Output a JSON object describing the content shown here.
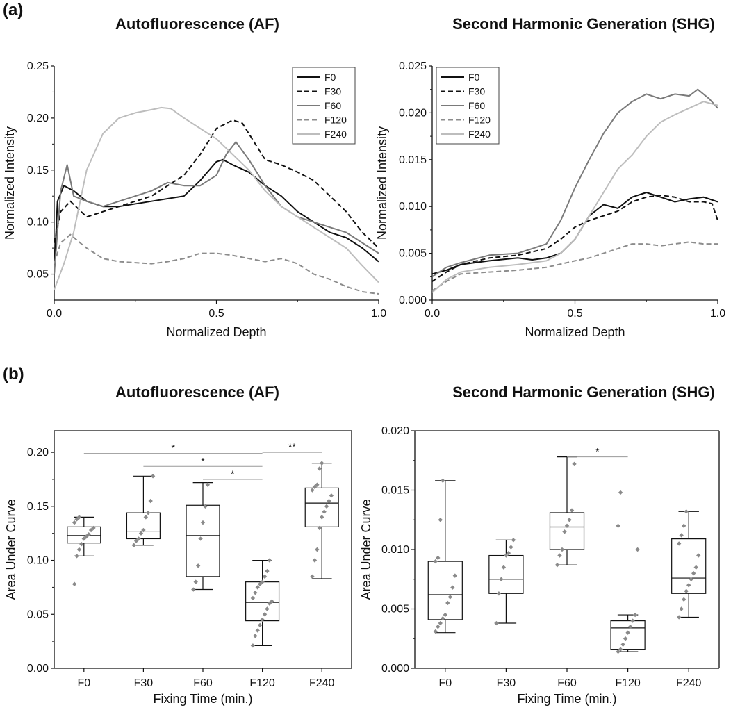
{
  "panels": {
    "a": "(a)",
    "b": "(b)"
  },
  "chart_data": [
    {
      "id": "af-profile",
      "type": "line",
      "title": "Autofluorescence (AF)",
      "xlabel": "Normalized Depth",
      "ylabel": "Normalized Intensity",
      "xlim": [
        0,
        1
      ],
      "ylim": [
        0.025,
        0.25
      ],
      "xticks": [
        0,
        0.5,
        1
      ],
      "xtick_labels": [
        "0.0",
        "0.5",
        "1.0"
      ],
      "yticks": [
        0.05,
        0.1,
        0.15,
        0.2,
        0.25
      ],
      "ytick_labels": [
        "0.05",
        "0.10",
        "0.15",
        "0.20",
        "0.25"
      ],
      "legend": "top-right",
      "series": [
        {
          "name": "F0",
          "color": "#111111",
          "dash": "solid",
          "x": [
            0,
            0.01,
            0.03,
            0.06,
            0.1,
            0.15,
            0.2,
            0.3,
            0.4,
            0.45,
            0.5,
            0.52,
            0.55,
            0.6,
            0.65,
            0.7,
            0.75,
            0.8,
            0.85,
            0.9,
            0.95,
            1.0
          ],
          "y": [
            0.05,
            0.12,
            0.135,
            0.13,
            0.12,
            0.115,
            0.115,
            0.12,
            0.125,
            0.14,
            0.158,
            0.16,
            0.155,
            0.148,
            0.135,
            0.125,
            0.11,
            0.1,
            0.09,
            0.085,
            0.075,
            0.062
          ]
        },
        {
          "name": "F30",
          "color": "#111111",
          "dash": "dashed",
          "x": [
            0,
            0.02,
            0.05,
            0.1,
            0.15,
            0.2,
            0.25,
            0.3,
            0.35,
            0.4,
            0.45,
            0.5,
            0.55,
            0.58,
            0.6,
            0.65,
            0.7,
            0.75,
            0.8,
            0.85,
            0.9,
            0.95,
            1.0
          ],
          "y": [
            0.08,
            0.11,
            0.12,
            0.105,
            0.11,
            0.115,
            0.12,
            0.125,
            0.135,
            0.145,
            0.165,
            0.19,
            0.198,
            0.195,
            0.185,
            0.16,
            0.155,
            0.148,
            0.14,
            0.125,
            0.11,
            0.09,
            0.075
          ]
        },
        {
          "name": "F60",
          "color": "#7a7a7a",
          "dash": "solid",
          "x": [
            0,
            0.02,
            0.04,
            0.06,
            0.1,
            0.15,
            0.2,
            0.25,
            0.3,
            0.35,
            0.4,
            0.45,
            0.5,
            0.53,
            0.56,
            0.6,
            0.65,
            0.7,
            0.75,
            0.8,
            0.85,
            0.9,
            0.95,
            1.0
          ],
          "y": [
            0.05,
            0.13,
            0.155,
            0.125,
            0.12,
            0.115,
            0.12,
            0.125,
            0.13,
            0.138,
            0.135,
            0.135,
            0.145,
            0.165,
            0.177,
            0.16,
            0.135,
            0.115,
            0.105,
            0.1,
            0.095,
            0.09,
            0.08,
            0.07
          ]
        },
        {
          "name": "F120",
          "color": "#8c8c8c",
          "dash": "dashed",
          "x": [
            0,
            0.02,
            0.05,
            0.08,
            0.1,
            0.15,
            0.2,
            0.3,
            0.35,
            0.4,
            0.45,
            0.5,
            0.55,
            0.6,
            0.65,
            0.7,
            0.75,
            0.8,
            0.85,
            0.9,
            0.95,
            1.0
          ],
          "y": [
            0.06,
            0.08,
            0.088,
            0.08,
            0.075,
            0.065,
            0.062,
            0.06,
            0.062,
            0.065,
            0.07,
            0.07,
            0.068,
            0.065,
            0.062,
            0.065,
            0.06,
            0.05,
            0.045,
            0.038,
            0.033,
            0.031
          ]
        },
        {
          "name": "F240",
          "color": "#bdbdbd",
          "dash": "solid",
          "x": [
            0,
            0.03,
            0.06,
            0.1,
            0.15,
            0.2,
            0.25,
            0.3,
            0.33,
            0.36,
            0.4,
            0.45,
            0.5,
            0.55,
            0.6,
            0.65,
            0.7,
            0.75,
            0.8,
            0.85,
            0.9,
            0.95,
            1.0
          ],
          "y": [
            0.035,
            0.06,
            0.09,
            0.15,
            0.185,
            0.2,
            0.205,
            0.208,
            0.21,
            0.209,
            0.2,
            0.19,
            0.18,
            0.165,
            0.15,
            0.13,
            0.115,
            0.105,
            0.095,
            0.085,
            0.075,
            0.058,
            0.042
          ]
        }
      ]
    },
    {
      "id": "shg-profile",
      "type": "line",
      "title": "Second Harmonic Generation (SHG)",
      "xlabel": "Normalized Depth",
      "ylabel": "Normalized Intensity",
      "xlim": [
        0,
        1
      ],
      "ylim": [
        0,
        0.025
      ],
      "xticks": [
        0,
        0.5,
        1
      ],
      "xtick_labels": [
        "0.0",
        "0.5",
        "1.0"
      ],
      "yticks": [
        0,
        0.005,
        0.01,
        0.015,
        0.02,
        0.025
      ],
      "ytick_labels": [
        "0.000",
        "0.005",
        "0.010",
        "0.015",
        "0.020",
        "0.025"
      ],
      "legend": "top-left",
      "series": [
        {
          "name": "F0",
          "color": "#111111",
          "dash": "solid",
          "x": [
            0,
            0.05,
            0.1,
            0.2,
            0.3,
            0.35,
            0.4,
            0.45,
            0.5,
            0.55,
            0.6,
            0.65,
            0.7,
            0.75,
            0.8,
            0.85,
            0.9,
            0.95,
            1.0
          ],
          "y": [
            0.0028,
            0.0032,
            0.0038,
            0.0042,
            0.0045,
            0.0043,
            0.0045,
            0.005,
            0.0065,
            0.009,
            0.0102,
            0.0098,
            0.011,
            0.0115,
            0.011,
            0.0105,
            0.0108,
            0.011,
            0.0105
          ]
        },
        {
          "name": "F30",
          "color": "#111111",
          "dash": "dashed",
          "x": [
            0,
            0.05,
            0.1,
            0.2,
            0.3,
            0.4,
            0.45,
            0.5,
            0.55,
            0.6,
            0.65,
            0.7,
            0.75,
            0.8,
            0.85,
            0.9,
            0.95,
            0.98,
            1.0
          ],
          "y": [
            0.002,
            0.003,
            0.0038,
            0.0045,
            0.0048,
            0.0055,
            0.0065,
            0.0078,
            0.0085,
            0.009,
            0.0095,
            0.0105,
            0.011,
            0.0112,
            0.011,
            0.0105,
            0.0105,
            0.0103,
            0.0085
          ]
        },
        {
          "name": "F60",
          "color": "#7a7a7a",
          "dash": "solid",
          "x": [
            0,
            0.05,
            0.1,
            0.2,
            0.3,
            0.35,
            0.4,
            0.45,
            0.5,
            0.55,
            0.6,
            0.65,
            0.7,
            0.75,
            0.8,
            0.85,
            0.9,
            0.93,
            0.97,
            1.0
          ],
          "y": [
            0.0025,
            0.0035,
            0.004,
            0.0048,
            0.005,
            0.0055,
            0.006,
            0.0085,
            0.012,
            0.015,
            0.0178,
            0.02,
            0.0212,
            0.022,
            0.0215,
            0.022,
            0.0218,
            0.0225,
            0.0215,
            0.0205
          ]
        },
        {
          "name": "F120",
          "color": "#8c8c8c",
          "dash": "dashed",
          "x": [
            0,
            0.05,
            0.1,
            0.2,
            0.3,
            0.4,
            0.5,
            0.55,
            0.6,
            0.65,
            0.7,
            0.75,
            0.8,
            0.85,
            0.9,
            0.95,
            1.0
          ],
          "y": [
            0.001,
            0.002,
            0.0028,
            0.003,
            0.0032,
            0.0035,
            0.0042,
            0.0045,
            0.005,
            0.0055,
            0.006,
            0.006,
            0.0058,
            0.006,
            0.0062,
            0.006,
            0.006
          ]
        },
        {
          "name": "F240",
          "color": "#bdbdbd",
          "dash": "solid",
          "x": [
            0,
            0.05,
            0.1,
            0.2,
            0.3,
            0.35,
            0.4,
            0.45,
            0.5,
            0.55,
            0.6,
            0.65,
            0.7,
            0.75,
            0.8,
            0.85,
            0.9,
            0.95,
            1.0
          ],
          "y": [
            0.0008,
            0.0022,
            0.003,
            0.0035,
            0.0038,
            0.004,
            0.0042,
            0.005,
            0.0065,
            0.009,
            0.0115,
            0.014,
            0.0155,
            0.0175,
            0.019,
            0.0198,
            0.0205,
            0.0212,
            0.0208
          ]
        }
      ]
    },
    {
      "id": "af-auc",
      "type": "box",
      "title": "Autofluorescence (AF)",
      "xlabel": "Fixing Time (min.)",
      "ylabel": "Area Under Curve",
      "ylim": [
        0,
        0.22
      ],
      "yticks": [
        0,
        0.05,
        0.1,
        0.15,
        0.2
      ],
      "ytick_labels": [
        "0.00",
        "0.05",
        "0.10",
        "0.15",
        "0.20"
      ],
      "categories": [
        "F0",
        "F30",
        "F60",
        "F120",
        "F240"
      ],
      "boxes": [
        {
          "min": 0.104,
          "q1": 0.116,
          "median": 0.123,
          "q3": 0.131,
          "max": 0.14,
          "points": [
            0.078,
            0.104,
            0.11,
            0.115,
            0.12,
            0.122,
            0.124,
            0.128,
            0.13,
            0.135,
            0.138,
            0.14
          ]
        },
        {
          "min": 0.114,
          "q1": 0.12,
          "median": 0.127,
          "q3": 0.144,
          "max": 0.178,
          "points": [
            0.114,
            0.118,
            0.12,
            0.125,
            0.128,
            0.14,
            0.144,
            0.155,
            0.178
          ]
        },
        {
          "min": 0.073,
          "q1": 0.085,
          "median": 0.123,
          "q3": 0.151,
          "max": 0.172,
          "points": [
            0.073,
            0.08,
            0.095,
            0.12,
            0.135,
            0.15,
            0.17
          ]
        },
        {
          "min": 0.021,
          "q1": 0.044,
          "median": 0.061,
          "q3": 0.08,
          "max": 0.1,
          "points": [
            0.021,
            0.03,
            0.035,
            0.04,
            0.045,
            0.05,
            0.055,
            0.06,
            0.062,
            0.065,
            0.07,
            0.075,
            0.078,
            0.08,
            0.085,
            0.09,
            0.1
          ]
        },
        {
          "min": 0.083,
          "q1": 0.131,
          "median": 0.153,
          "q3": 0.167,
          "max": 0.19,
          "points": [
            0.085,
            0.1,
            0.11,
            0.13,
            0.14,
            0.145,
            0.15,
            0.155,
            0.16,
            0.165,
            0.168,
            0.17,
            0.185,
            0.19
          ]
        }
      ],
      "significance": [
        {
          "from": "F0",
          "to": "F120",
          "y": 0.199,
          "label": "*"
        },
        {
          "from": "F30",
          "to": "F120",
          "y": 0.187,
          "label": "*"
        },
        {
          "from": "F60",
          "to": "F120",
          "y": 0.175,
          "label": "*"
        },
        {
          "from": "F120",
          "to": "F240",
          "y": 0.2,
          "label": "**"
        }
      ]
    },
    {
      "id": "shg-auc",
      "type": "box",
      "title": "Second Harmonic Generation (SHG)",
      "xlabel": "Fixing Time (min.)",
      "ylabel": "Area Under Curve",
      "ylim": [
        0,
        0.02
      ],
      "yticks": [
        0,
        0.005,
        0.01,
        0.015,
        0.02
      ],
      "ytick_labels": [
        "0.000",
        "0.005",
        "0.010",
        "0.015",
        "0.020"
      ],
      "categories": [
        "F0",
        "F30",
        "F60",
        "F120",
        "F240"
      ],
      "boxes": [
        {
          "min": 0.003,
          "q1": 0.0041,
          "median": 0.0062,
          "q3": 0.009,
          "max": 0.0158,
          "points": [
            0.0031,
            0.0035,
            0.0038,
            0.0042,
            0.0045,
            0.0055,
            0.006,
            0.0068,
            0.0078,
            0.009,
            0.0093,
            0.0125,
            0.0158
          ]
        },
        {
          "min": 0.0038,
          "q1": 0.0063,
          "median": 0.0075,
          "q3": 0.0095,
          "max": 0.0108,
          "points": [
            0.0038,
            0.0063,
            0.0075,
            0.0085,
            0.0095,
            0.0097,
            0.0102,
            0.0108
          ]
        },
        {
          "min": 0.0087,
          "q1": 0.01,
          "median": 0.0119,
          "q3": 0.0131,
          "max": 0.0178,
          "points": [
            0.0087,
            0.0095,
            0.01,
            0.0115,
            0.012,
            0.0125,
            0.0133,
            0.0172
          ]
        },
        {
          "min": 0.0014,
          "q1": 0.0016,
          "median": 0.0034,
          "q3": 0.004,
          "max": 0.0045,
          "points": [
            0.0014,
            0.0016,
            0.002,
            0.0025,
            0.003,
            0.0035,
            0.004,
            0.0045,
            0.01,
            0.012,
            0.0148
          ]
        },
        {
          "min": 0.0043,
          "q1": 0.0063,
          "median": 0.0076,
          "q3": 0.0109,
          "max": 0.0132,
          "points": [
            0.0043,
            0.005,
            0.0058,
            0.0065,
            0.007,
            0.0075,
            0.008,
            0.0085,
            0.0095,
            0.0105,
            0.0112,
            0.012,
            0.0132
          ]
        }
      ],
      "significance": [
        {
          "from": "F60",
          "to": "F120",
          "y": 0.0178,
          "label": "*"
        }
      ]
    }
  ]
}
